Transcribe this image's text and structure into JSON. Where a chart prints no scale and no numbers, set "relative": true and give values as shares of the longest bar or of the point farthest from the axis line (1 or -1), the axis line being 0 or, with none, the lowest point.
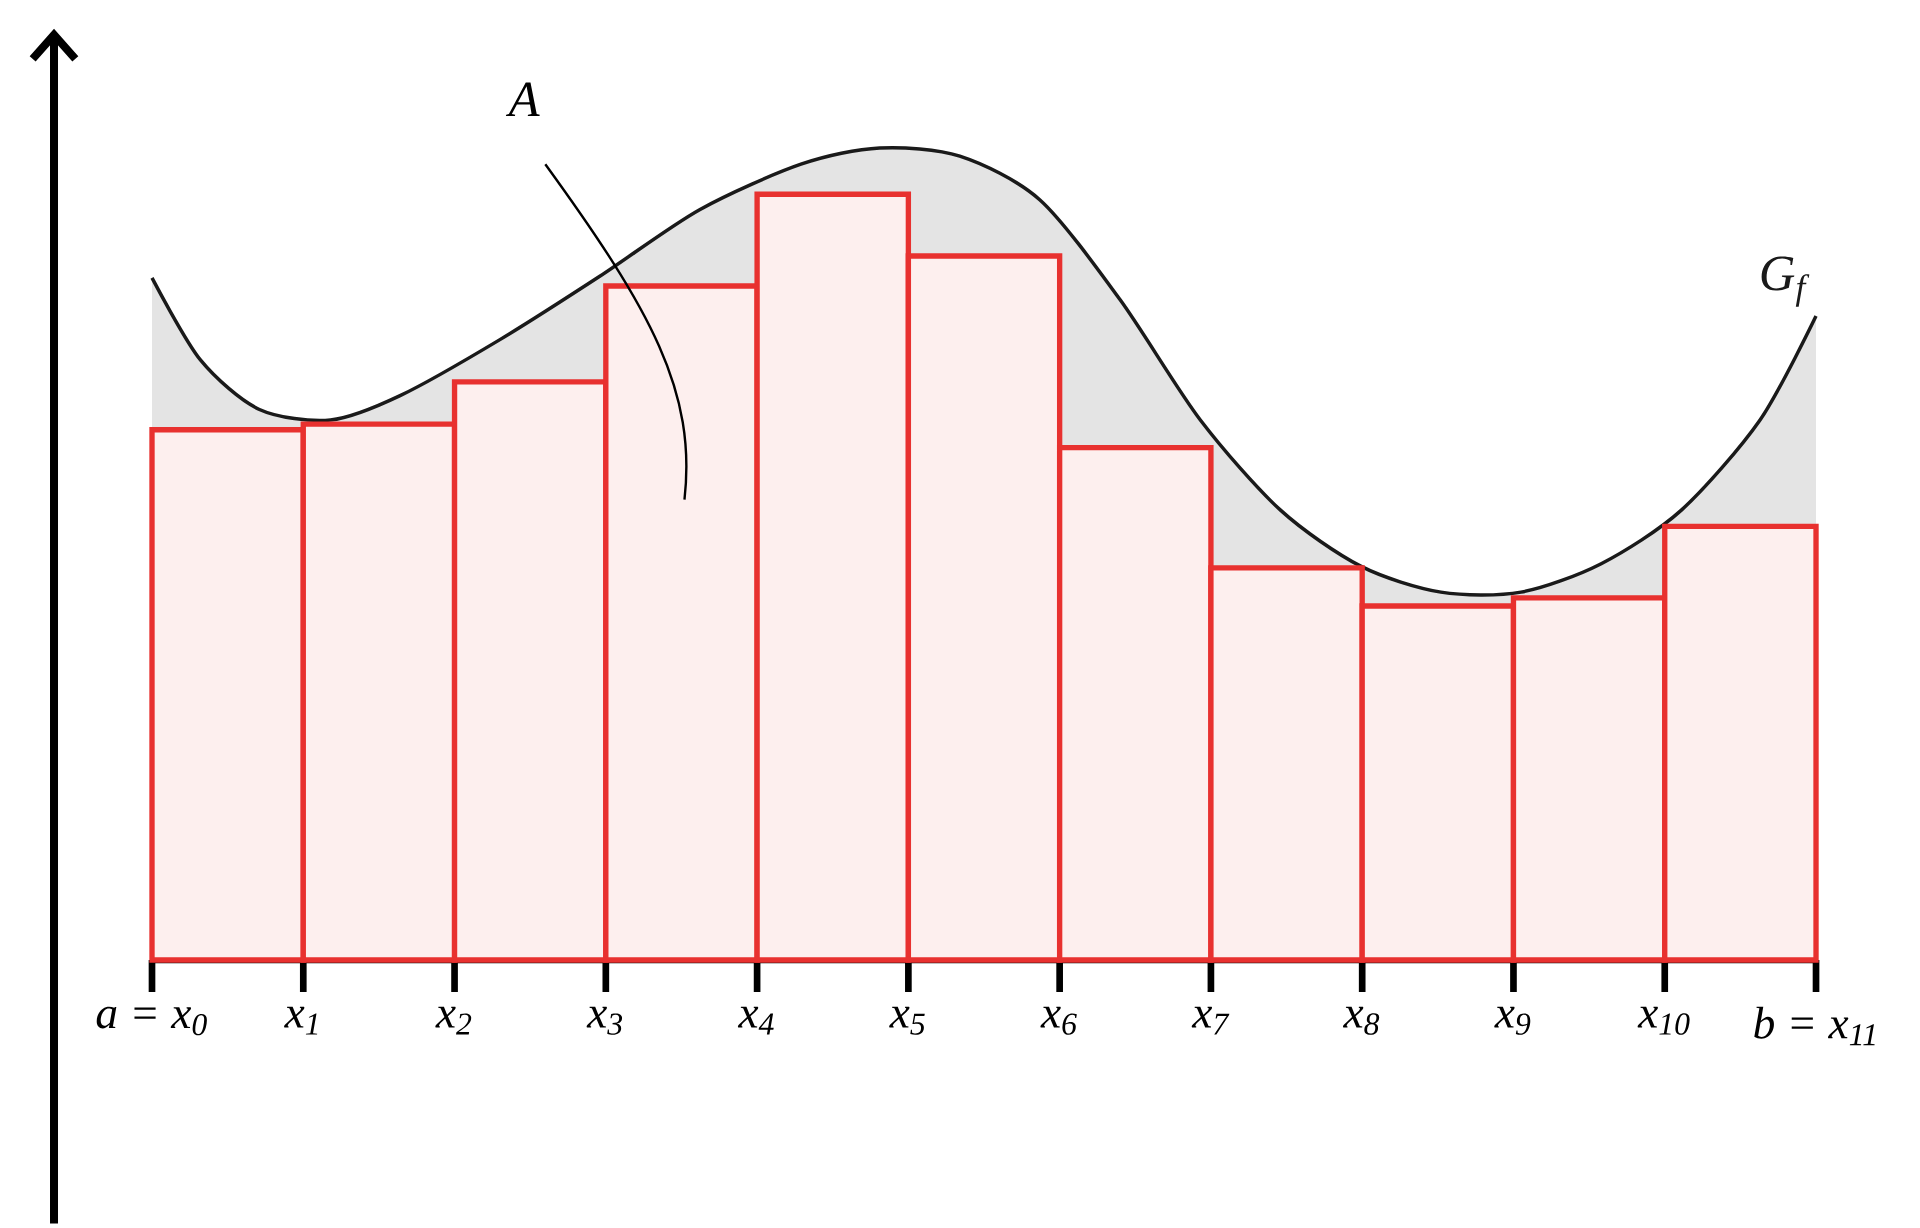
{
  "chart_data": {
    "type": "bar",
    "relative": true,
    "xlim": [
      0,
      11
    ],
    "xticks": [
      {
        "value": 0,
        "label": "a = x$_{0}$"
      },
      {
        "value": 1,
        "label": "x$_{1}$"
      },
      {
        "value": 2,
        "label": "x$_{2}$"
      },
      {
        "value": 3,
        "label": "x$_{3}$"
      },
      {
        "value": 4,
        "label": "x$_{4}$"
      },
      {
        "value": 5,
        "label": "x$_{5}$"
      },
      {
        "value": 6,
        "label": "x$_{6}$"
      },
      {
        "value": 7,
        "label": "x$_{7}$"
      },
      {
        "value": 8,
        "label": "x$_{8}$"
      },
      {
        "value": 9,
        "label": "x$_{9}$"
      },
      {
        "value": 10,
        "label": "x$_{10}$"
      },
      {
        "value": 11,
        "label": "b = x$_{11}$"
      }
    ],
    "series": [
      {
        "color": "#e8312f",
        "x": [
          0.5,
          1.5,
          2.5,
          3.5,
          4.5,
          5.5,
          6.5,
          7.5,
          8.5,
          9.5,
          10.5
        ],
        "values": [
          0.653,
          0.66,
          0.712,
          0.83,
          0.943,
          0.867,
          0.631,
          0.483,
          0.436,
          0.446,
          0.534
        ]
      },
      {
        "type": "area",
        "name": "G$_{f}$",
        "color": "#1a1a1a",
        "x": [
          0,
          0.32,
          0.71,
          1.18,
          1.64,
          2.3,
          2.96,
          3.62,
          4.29,
          4.81,
          5.34,
          5.87,
          6.4,
          6.93,
          7.46,
          7.99,
          8.52,
          9.05,
          9.58,
          10.11,
          10.63,
          11
        ],
        "values": [
          0.84,
          0.739,
          0.678,
          0.665,
          0.695,
          0.764,
          0.842,
          0.924,
          0.98,
          1.0,
          0.99,
          0.936,
          0.813,
          0.665,
          0.554,
          0.485,
          0.453,
          0.453,
          0.488,
          0.554,
          0.665,
          0.793
        ]
      }
    ],
    "annotations": [
      "A"
    ]
  }
}
